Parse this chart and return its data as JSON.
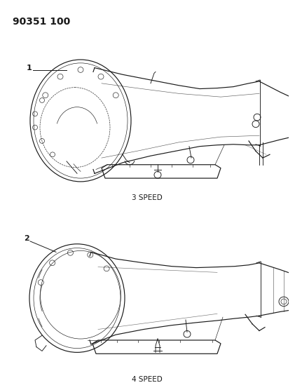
{
  "background_color": "#ffffff",
  "part_number": "90351 100",
  "part_number_fontsize": 10,
  "part_number_fontweight": "bold",
  "label1_text": "1",
  "label1_fontsize": 8,
  "label2_text": "2",
  "label2_fontsize": 8,
  "caption1_text": "3 SPEED",
  "caption1_fontsize": 7.5,
  "caption2_text": "4 SPEED",
  "caption2_fontsize": 7.5,
  "line_color": "#1a1a1a",
  "lw_main": 0.85,
  "lw_med": 0.65,
  "lw_thin": 0.45
}
